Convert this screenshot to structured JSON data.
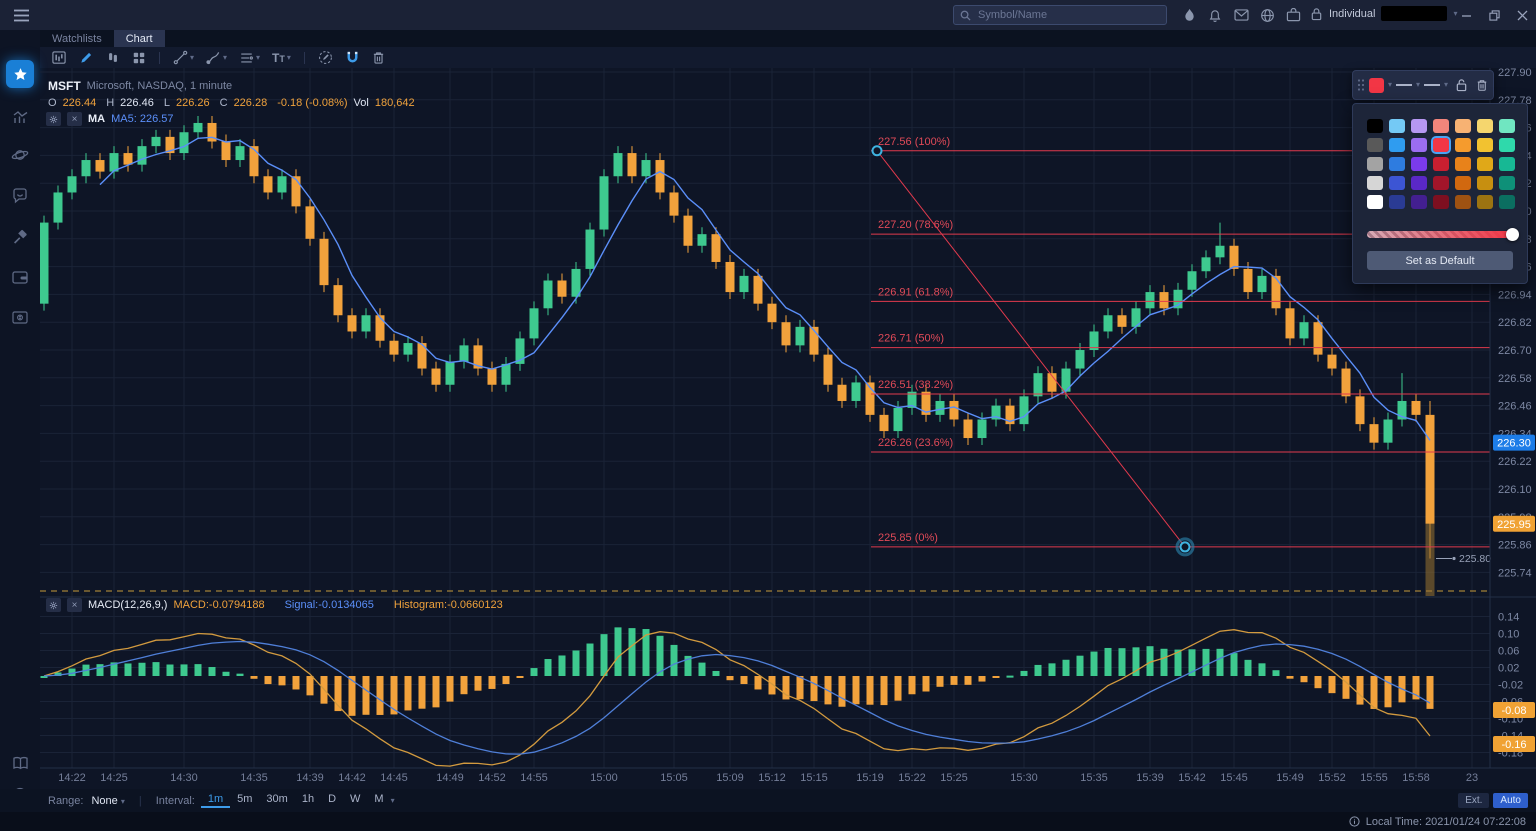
{
  "topbar": {
    "search_placeholder": "Symbol/Name",
    "account_label": "Individual",
    "icons": [
      "hot",
      "alerts",
      "messages",
      "globe",
      "portfolio",
      "lock"
    ]
  },
  "tabs": [
    {
      "label": "Watchlists",
      "active": false
    },
    {
      "label": "Chart",
      "active": true
    }
  ],
  "legend": {
    "symbol": "MSFT",
    "description": "Microsoft, NASDAQ, 1 minute",
    "o_label": "O",
    "o": "226.44",
    "h_label": "H",
    "h": "226.46",
    "l_label": "L",
    "l": "226.26",
    "c_label": "C",
    "c": "226.28",
    "change": "-0.18 (-0.08%)",
    "vol_label": "Vol",
    "volume": "180,642"
  },
  "ma_row": {
    "name": "MA",
    "series": "MA5: 226.57"
  },
  "macd_row": {
    "name": "MACD(12,26,9,)",
    "macd": "MACD:-0.0794188",
    "signal": "Signal:-0.0134065",
    "histogram": "Histogram:-0.0660123"
  },
  "badges": {
    "price": "226.30",
    "close": "225.95",
    "macd1": "-0.08",
    "macd2": "-0.16"
  },
  "low_marker": "225.80",
  "color_panel": {
    "button": "Set as Default",
    "selected_row": 1,
    "selected_col": 3,
    "rows": [
      [
        "#000000",
        "#74c9f5",
        "#b697f2",
        "#f2857b",
        "#f7b273",
        "#f5d66e",
        "#70e6c1"
      ],
      [
        "#595959",
        "#2f9cf0",
        "#9b6df0",
        "#f23645",
        "#f59b2d",
        "#f2c230",
        "#2fd9ab"
      ],
      [
        "#a3a3a3",
        "#2e7ce0",
        "#7b3beb",
        "#c91f30",
        "#e8821a",
        "#e0a818",
        "#17b894"
      ],
      [
        "#d6d6d6",
        "#3c55d4",
        "#5a28c7",
        "#a3152a",
        "#d1680f",
        "#c78f10",
        "#0e9078"
      ],
      [
        "#ffffff",
        "#2a3b94",
        "#431f91",
        "#7d0f20",
        "#9e5212",
        "#9c7311",
        "#0b6e60"
      ]
    ]
  },
  "bottom_bar": {
    "range_label": "Range:",
    "range_value": "None",
    "interval_label": "Interval:",
    "intervals": [
      "1m",
      "5m",
      "30m",
      "1h",
      "D",
      "W",
      "M"
    ],
    "active_interval": "1m",
    "ext": "Ext.",
    "auto": "Auto"
  },
  "status_bar": {
    "local_time": "Local Time: 2021/01/24 07:22:08"
  },
  "chart_data": {
    "type": "candlestick",
    "symbol": "MSFT",
    "interval": "1 minute",
    "start_time": "14:20",
    "price_axis": {
      "max": 227.9,
      "min": 225.74,
      "tick": 0.12
    },
    "macd_axis": {
      "max": 0.14,
      "min": -0.18,
      "tick": 0.04
    },
    "ma_period": 5,
    "macd_params": [
      12,
      26,
      9
    ],
    "session_line_price": 225.66,
    "after_hours_low": 225.62,
    "last_low_marker": 225.8,
    "current_price": 226.3,
    "last_close": 225.95,
    "macd_badge_values": [
      -0.08,
      -0.16
    ],
    "fib_levels": [
      {
        "label": "227.56 (100%)",
        "price": 227.56
      },
      {
        "label": "227.20 (78.6%)",
        "price": 227.2
      },
      {
        "label": "226.91 (61.8%)",
        "price": 226.91
      },
      {
        "label": "226.71 (50%)",
        "price": 226.71
      },
      {
        "label": "226.51 (38.2%)",
        "price": 226.51
      },
      {
        "label": "226.26 (23.6%)",
        "price": 226.26
      },
      {
        "label": "225.85 (0%)",
        "price": 225.85
      }
    ],
    "trend_line": {
      "from_minute": 59.5,
      "from_price": 227.56,
      "to_minute": 81.5,
      "to_price": 225.85
    },
    "time_ticks": [
      {
        "label": "14:22",
        "m": 2
      },
      {
        "label": "14:25",
        "m": 5
      },
      {
        "label": "14:30",
        "m": 10
      },
      {
        "label": "14:35",
        "m": 15
      },
      {
        "label": "14:39",
        "m": 19
      },
      {
        "label": "14:42",
        "m": 22
      },
      {
        "label": "14:45",
        "m": 25
      },
      {
        "label": "14:49",
        "m": 29
      },
      {
        "label": "14:52",
        "m": 32
      },
      {
        "label": "14:55",
        "m": 35
      },
      {
        "label": "15:00",
        "m": 40
      },
      {
        "label": "15:05",
        "m": 45
      },
      {
        "label": "15:09",
        "m": 49
      },
      {
        "label": "15:12",
        "m": 52
      },
      {
        "label": "15:15",
        "m": 55
      },
      {
        "label": "15:19",
        "m": 59
      },
      {
        "label": "15:22",
        "m": 62
      },
      {
        "label": "15:25",
        "m": 65
      },
      {
        "label": "15:30",
        "m": 70
      },
      {
        "label": "15:35",
        "m": 75
      },
      {
        "label": "15:39",
        "m": 79
      },
      {
        "label": "15:42",
        "m": 82
      },
      {
        "label": "15:45",
        "m": 85
      },
      {
        "label": "15:49",
        "m": 89
      },
      {
        "label": "15:52",
        "m": 92
      },
      {
        "label": "15:55",
        "m": 95
      },
      {
        "label": "15:58",
        "m": 98
      },
      {
        "label": "23",
        "m": 102
      }
    ],
    "candles": [
      [
        226.9,
        227.28,
        226.87,
        227.25
      ],
      [
        227.25,
        227.41,
        227.22,
        227.38
      ],
      [
        227.38,
        227.48,
        227.35,
        227.45
      ],
      [
        227.45,
        227.55,
        227.42,
        227.52
      ],
      [
        227.52,
        227.55,
        227.44,
        227.47
      ],
      [
        227.47,
        227.58,
        227.44,
        227.55
      ],
      [
        227.55,
        227.58,
        227.47,
        227.5
      ],
      [
        227.5,
        227.61,
        227.47,
        227.58
      ],
      [
        227.58,
        227.65,
        227.55,
        227.62
      ],
      [
        227.62,
        227.65,
        227.52,
        227.55
      ],
      [
        227.55,
        227.67,
        227.52,
        227.64
      ],
      [
        227.64,
        227.71,
        227.61,
        227.68
      ],
      [
        227.68,
        227.71,
        227.57,
        227.6
      ],
      [
        227.6,
        227.63,
        227.49,
        227.52
      ],
      [
        227.52,
        227.61,
        227.49,
        227.58
      ],
      [
        227.58,
        227.61,
        227.42,
        227.45
      ],
      [
        227.45,
        227.48,
        227.35,
        227.38
      ],
      [
        227.38,
        227.48,
        227.35,
        227.45
      ],
      [
        227.45,
        227.48,
        227.29,
        227.32
      ],
      [
        227.32,
        227.35,
        227.15,
        227.18
      ],
      [
        227.18,
        227.21,
        226.95,
        226.98
      ],
      [
        226.98,
        227.01,
        226.82,
        226.85
      ],
      [
        226.85,
        226.88,
        226.75,
        226.78
      ],
      [
        226.78,
        226.88,
        226.75,
        226.85
      ],
      [
        226.85,
        226.88,
        226.71,
        226.74
      ],
      [
        226.74,
        226.77,
        226.65,
        226.68
      ],
      [
        226.68,
        226.76,
        226.65,
        226.73
      ],
      [
        226.73,
        226.76,
        226.59,
        226.62
      ],
      [
        226.62,
        226.65,
        226.52,
        226.55
      ],
      [
        226.55,
        226.68,
        226.52,
        226.65
      ],
      [
        226.65,
        226.75,
        226.62,
        226.72
      ],
      [
        226.72,
        226.75,
        226.59,
        226.62
      ],
      [
        226.62,
        226.65,
        226.52,
        226.55
      ],
      [
        226.55,
        226.67,
        226.52,
        226.64
      ],
      [
        226.64,
        226.78,
        226.61,
        226.75
      ],
      [
        226.75,
        226.91,
        226.72,
        226.88
      ],
      [
        226.88,
        227.03,
        226.85,
        227.0
      ],
      [
        227.0,
        227.03,
        226.9,
        226.93
      ],
      [
        226.93,
        227.08,
        226.9,
        227.05
      ],
      [
        227.05,
        227.25,
        227.02,
        227.22
      ],
      [
        227.22,
        227.48,
        227.19,
        227.45
      ],
      [
        227.45,
        227.58,
        227.42,
        227.55
      ],
      [
        227.55,
        227.58,
        227.42,
        227.45
      ],
      [
        227.45,
        227.55,
        227.42,
        227.52
      ],
      [
        227.52,
        227.55,
        227.35,
        227.38
      ],
      [
        227.38,
        227.41,
        227.25,
        227.28
      ],
      [
        227.28,
        227.31,
        227.12,
        227.15
      ],
      [
        227.15,
        227.23,
        227.12,
        227.2
      ],
      [
        227.2,
        227.23,
        227.05,
        227.08
      ],
      [
        227.08,
        227.11,
        226.92,
        226.95
      ],
      [
        226.95,
        227.05,
        226.92,
        227.02
      ],
      [
        227.02,
        227.05,
        226.87,
        226.9
      ],
      [
        226.9,
        226.93,
        226.79,
        226.82
      ],
      [
        226.82,
        226.85,
        226.69,
        226.72
      ],
      [
        226.72,
        226.83,
        226.69,
        226.8
      ],
      [
        226.8,
        226.83,
        226.65,
        226.68
      ],
      [
        226.68,
        226.71,
        226.52,
        226.55
      ],
      [
        226.55,
        226.58,
        226.45,
        226.48
      ],
      [
        226.48,
        226.59,
        226.45,
        226.56
      ],
      [
        226.56,
        226.59,
        226.39,
        226.42
      ],
      [
        226.42,
        226.45,
        226.32,
        226.35
      ],
      [
        226.35,
        226.48,
        226.32,
        226.45
      ],
      [
        226.45,
        226.55,
        226.42,
        226.52
      ],
      [
        226.52,
        226.55,
        226.39,
        226.42
      ],
      [
        226.42,
        226.51,
        226.39,
        226.48
      ],
      [
        226.48,
        226.51,
        226.37,
        226.4
      ],
      [
        226.4,
        226.43,
        226.29,
        226.32
      ],
      [
        226.32,
        226.43,
        226.29,
        226.4
      ],
      [
        226.4,
        226.49,
        226.37,
        226.46
      ],
      [
        226.46,
        226.49,
        226.35,
        226.38
      ],
      [
        226.38,
        226.53,
        226.35,
        226.5
      ],
      [
        226.5,
        226.63,
        226.47,
        226.6
      ],
      [
        226.6,
        226.63,
        226.49,
        226.52
      ],
      [
        226.52,
        226.65,
        226.49,
        226.62
      ],
      [
        226.62,
        226.73,
        226.59,
        226.7
      ],
      [
        226.7,
        226.81,
        226.67,
        226.78
      ],
      [
        226.78,
        226.88,
        226.75,
        226.85
      ],
      [
        226.85,
        226.88,
        226.77,
        226.8
      ],
      [
        226.8,
        226.91,
        226.77,
        226.88
      ],
      [
        226.88,
        226.98,
        226.85,
        226.95
      ],
      [
        226.95,
        226.98,
        226.85,
        226.88
      ],
      [
        226.88,
        226.99,
        226.85,
        226.96
      ],
      [
        226.96,
        227.07,
        226.93,
        227.04
      ],
      [
        227.04,
        227.13,
        227.01,
        227.1
      ],
      [
        227.1,
        227.25,
        227.07,
        227.15
      ],
      [
        227.15,
        227.18,
        227.02,
        227.05
      ],
      [
        227.05,
        227.08,
        226.92,
        226.95
      ],
      [
        226.95,
        227.05,
        226.92,
        227.02
      ],
      [
        227.02,
        227.05,
        226.85,
        226.88
      ],
      [
        226.88,
        226.91,
        226.72,
        226.75
      ],
      [
        226.75,
        226.85,
        226.72,
        226.82
      ],
      [
        226.82,
        226.85,
        226.65,
        226.68
      ],
      [
        226.68,
        226.71,
        226.59,
        226.62
      ],
      [
        226.62,
        226.65,
        226.47,
        226.5
      ],
      [
        226.5,
        226.53,
        226.35,
        226.38
      ],
      [
        226.38,
        226.41,
        226.27,
        226.3
      ],
      [
        226.3,
        226.43,
        226.27,
        226.4
      ],
      [
        226.4,
        226.6,
        226.37,
        226.48
      ],
      [
        226.48,
        226.51,
        226.39,
        226.42
      ],
      [
        226.42,
        226.48,
        225.8,
        225.95
      ]
    ]
  }
}
